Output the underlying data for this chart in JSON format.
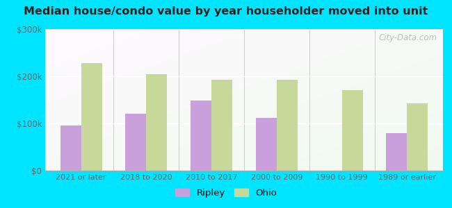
{
  "title": "Median house/condo value by year householder moved into unit",
  "categories": [
    "2021 or later",
    "2018 to 2020",
    "2010 to 2017",
    "2000 to 2009",
    "1990 to 1999",
    "1989 or earlier"
  ],
  "ripley_values": [
    95000,
    120000,
    148000,
    112000,
    0,
    80000
  ],
  "ohio_values": [
    228000,
    205000,
    192000,
    192000,
    170000,
    143000
  ],
  "ripley_color": "#c9a0dc",
  "ohio_color": "#c8d89a",
  "bg_top_color": "#f0fff0",
  "bg_bottom_color": "#d8f0d0",
  "outer_background": "#00e5ff",
  "ylim": [
    0,
    300000
  ],
  "yticks": [
    0,
    100000,
    200000,
    300000
  ],
  "ytick_labels": [
    "$0",
    "$100k",
    "$200k",
    "$300k"
  ],
  "watermark": "City-Data.com",
  "legend_labels": [
    "Ripley",
    "Ohio"
  ],
  "bar_width": 0.32
}
